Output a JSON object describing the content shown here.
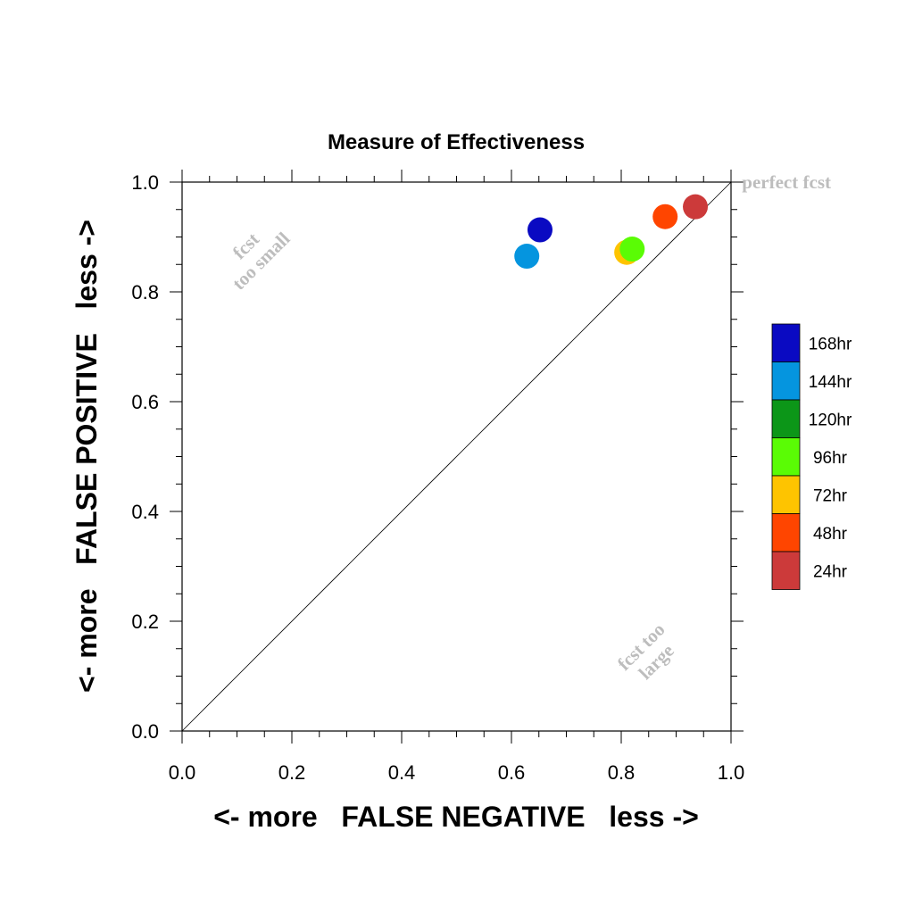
{
  "chart_data": {
    "type": "scatter",
    "title": "Measure of Effectiveness",
    "xlabel": "<- more   FALSE NEGATIVE   less ->",
    "ylabel": "<- more   FALSE POSITIVE   less ->",
    "xlim": [
      0.0,
      1.0
    ],
    "ylim": [
      0.0,
      1.0
    ],
    "xticks": [
      0.0,
      0.2,
      0.4,
      0.6,
      0.8,
      1.0
    ],
    "yticks": [
      0.0,
      0.2,
      0.4,
      0.6,
      0.8,
      1.0
    ],
    "xtick_labels": [
      "0.0",
      "0.2",
      "0.4",
      "0.6",
      "0.8",
      "1.0"
    ],
    "ytick_labels": [
      "0.0",
      "0.2",
      "0.4",
      "0.6",
      "0.8",
      "1.0"
    ],
    "minor_tick_step": 0.05,
    "grid": false,
    "reference_line": "diagonal",
    "annotations": [
      {
        "text": [
          "fcst",
          "too small"
        ],
        "x": 0.13,
        "y": 0.87,
        "rotation": -45
      },
      {
        "text": [
          "fcst too",
          "large"
        ],
        "x": 0.85,
        "y": 0.14,
        "rotation": -45
      },
      {
        "text": [
          "perfect fcst"
        ],
        "x": 1.02,
        "y": 1.0,
        "rotation": 0
      }
    ],
    "legend_position": "right",
    "series": [
      {
        "name": "168hr",
        "color": "#0a0ac2",
        "x": 0.652,
        "y": 0.913
      },
      {
        "name": "144hr",
        "color": "#0595df",
        "x": 0.628,
        "y": 0.865
      },
      {
        "name": "120hr",
        "color": "#0c9618",
        "x": null,
        "y": null
      },
      {
        "name": "96hr",
        "color": "#5afc05",
        "x": 0.82,
        "y": 0.878
      },
      {
        "name": "72hr",
        "color": "#fec400",
        "x": 0.81,
        "y": 0.872
      },
      {
        "name": "48hr",
        "color": "#ff4500",
        "x": 0.88,
        "y": 0.937
      },
      {
        "name": "24hr",
        "color": "#cc3a3a",
        "x": 0.935,
        "y": 0.955
      }
    ],
    "plot_order": [
      "144hr",
      "168hr",
      "72hr",
      "96hr",
      "48hr",
      "24hr"
    ]
  }
}
